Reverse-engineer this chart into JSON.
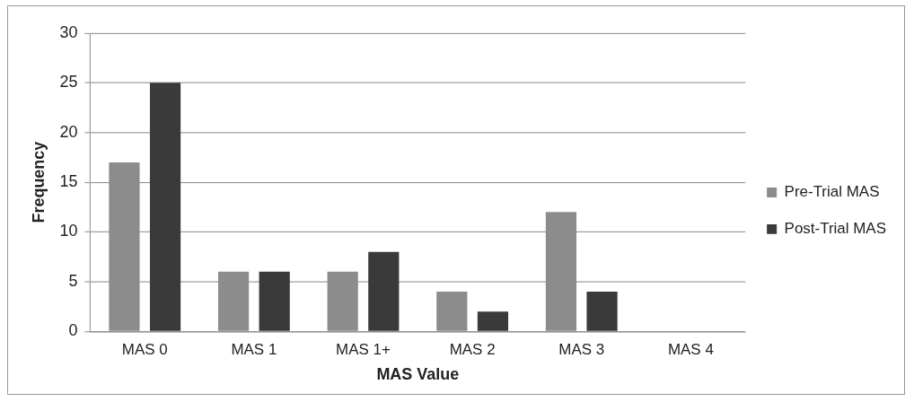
{
  "chart_data": {
    "type": "bar",
    "xlabel": "MAS Value",
    "ylabel": "Frequency",
    "categories": [
      "MAS 0",
      "MAS 1",
      "MAS 1+",
      "MAS 2",
      "MAS 3",
      "MAS 4"
    ],
    "series": [
      {
        "name": "Pre-Trial MAS",
        "color": "#8c8c8c",
        "values": [
          17,
          6,
          6,
          4,
          12,
          0
        ]
      },
      {
        "name": "Post-Trial MAS",
        "color": "#3a3a3a",
        "values": [
          25,
          6,
          8,
          2,
          4,
          0
        ]
      }
    ],
    "ylim": [
      0,
      30
    ],
    "yticks": [
      0,
      5,
      10,
      15,
      20,
      25,
      30
    ],
    "grid": "y",
    "legend": "right"
  }
}
